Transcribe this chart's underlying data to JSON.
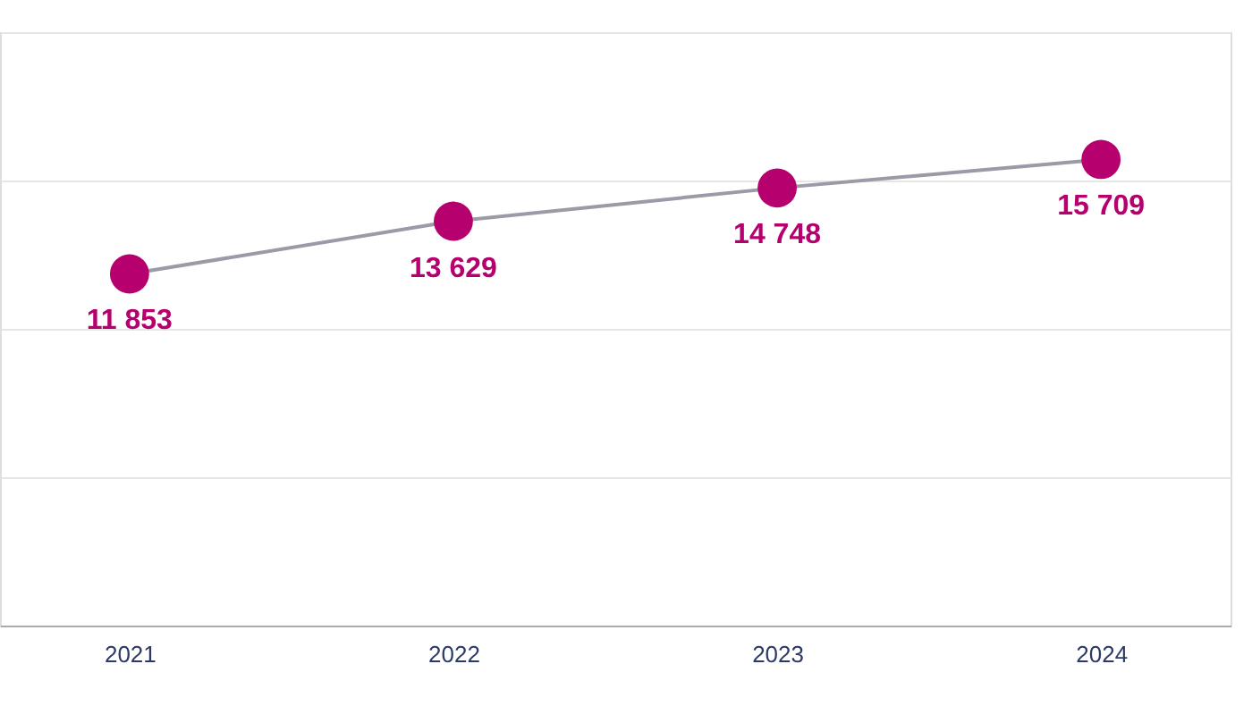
{
  "chart_data": {
    "type": "line",
    "categories": [
      "2021",
      "2022",
      "2023",
      "2024"
    ],
    "series": [
      {
        "color": "#9b9ba8",
        "colors": [
          "#b5006e",
          "#b5006e",
          "#b5006e",
          "#b5006e"
        ],
        "values": [
          11853,
          13629,
          14748,
          15709
        ],
        "value_labels": [
          "11 853",
          "13 629",
          "14 748",
          "15 709"
        ]
      }
    ],
    "ylim": [
      0,
      20000
    ],
    "yticks": [
      {
        "value": 0,
        "label": null
      },
      {
        "value": 5000,
        "label": null
      },
      {
        "value": 10000,
        "label": null
      },
      {
        "value": 15000,
        "label": null
      },
      {
        "value": 20000,
        "label": null
      }
    ],
    "tick_labels": "x",
    "grid": "y",
    "marker": "circle"
  }
}
